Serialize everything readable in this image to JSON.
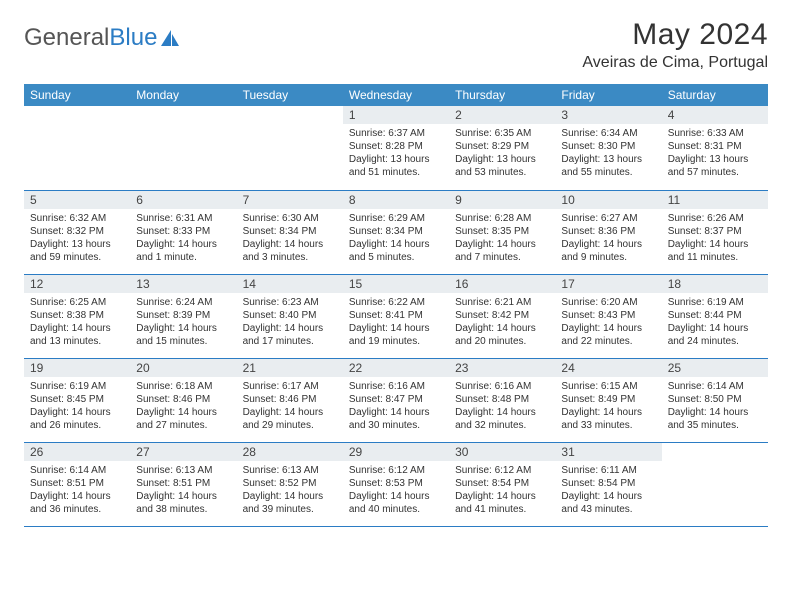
{
  "brand": {
    "part1": "General",
    "part2": "Blue"
  },
  "title": "May 2024",
  "location": "Aveiras de Cima, Portugal",
  "colors": {
    "header_bg": "#3b8ac4",
    "daynum_bg": "#e9edf0",
    "border": "#2b7cc4",
    "text": "#333333"
  },
  "dayNames": [
    "Sunday",
    "Monday",
    "Tuesday",
    "Wednesday",
    "Thursday",
    "Friday",
    "Saturday"
  ],
  "weeks": [
    [
      null,
      null,
      null,
      {
        "d": "1",
        "sr": "6:37 AM",
        "ss": "8:28 PM",
        "dl": "13 hours and 51 minutes."
      },
      {
        "d": "2",
        "sr": "6:35 AM",
        "ss": "8:29 PM",
        "dl": "13 hours and 53 minutes."
      },
      {
        "d": "3",
        "sr": "6:34 AM",
        "ss": "8:30 PM",
        "dl": "13 hours and 55 minutes."
      },
      {
        "d": "4",
        "sr": "6:33 AM",
        "ss": "8:31 PM",
        "dl": "13 hours and 57 minutes."
      }
    ],
    [
      {
        "d": "5",
        "sr": "6:32 AM",
        "ss": "8:32 PM",
        "dl": "13 hours and 59 minutes."
      },
      {
        "d": "6",
        "sr": "6:31 AM",
        "ss": "8:33 PM",
        "dl": "14 hours and 1 minute."
      },
      {
        "d": "7",
        "sr": "6:30 AM",
        "ss": "8:34 PM",
        "dl": "14 hours and 3 minutes."
      },
      {
        "d": "8",
        "sr": "6:29 AM",
        "ss": "8:34 PM",
        "dl": "14 hours and 5 minutes."
      },
      {
        "d": "9",
        "sr": "6:28 AM",
        "ss": "8:35 PM",
        "dl": "14 hours and 7 minutes."
      },
      {
        "d": "10",
        "sr": "6:27 AM",
        "ss": "8:36 PM",
        "dl": "14 hours and 9 minutes."
      },
      {
        "d": "11",
        "sr": "6:26 AM",
        "ss": "8:37 PM",
        "dl": "14 hours and 11 minutes."
      }
    ],
    [
      {
        "d": "12",
        "sr": "6:25 AM",
        "ss": "8:38 PM",
        "dl": "14 hours and 13 minutes."
      },
      {
        "d": "13",
        "sr": "6:24 AM",
        "ss": "8:39 PM",
        "dl": "14 hours and 15 minutes."
      },
      {
        "d": "14",
        "sr": "6:23 AM",
        "ss": "8:40 PM",
        "dl": "14 hours and 17 minutes."
      },
      {
        "d": "15",
        "sr": "6:22 AM",
        "ss": "8:41 PM",
        "dl": "14 hours and 19 minutes."
      },
      {
        "d": "16",
        "sr": "6:21 AM",
        "ss": "8:42 PM",
        "dl": "14 hours and 20 minutes."
      },
      {
        "d": "17",
        "sr": "6:20 AM",
        "ss": "8:43 PM",
        "dl": "14 hours and 22 minutes."
      },
      {
        "d": "18",
        "sr": "6:19 AM",
        "ss": "8:44 PM",
        "dl": "14 hours and 24 minutes."
      }
    ],
    [
      {
        "d": "19",
        "sr": "6:19 AM",
        "ss": "8:45 PM",
        "dl": "14 hours and 26 minutes."
      },
      {
        "d": "20",
        "sr": "6:18 AM",
        "ss": "8:46 PM",
        "dl": "14 hours and 27 minutes."
      },
      {
        "d": "21",
        "sr": "6:17 AM",
        "ss": "8:46 PM",
        "dl": "14 hours and 29 minutes."
      },
      {
        "d": "22",
        "sr": "6:16 AM",
        "ss": "8:47 PM",
        "dl": "14 hours and 30 minutes."
      },
      {
        "d": "23",
        "sr": "6:16 AM",
        "ss": "8:48 PM",
        "dl": "14 hours and 32 minutes."
      },
      {
        "d": "24",
        "sr": "6:15 AM",
        "ss": "8:49 PM",
        "dl": "14 hours and 33 minutes."
      },
      {
        "d": "25",
        "sr": "6:14 AM",
        "ss": "8:50 PM",
        "dl": "14 hours and 35 minutes."
      }
    ],
    [
      {
        "d": "26",
        "sr": "6:14 AM",
        "ss": "8:51 PM",
        "dl": "14 hours and 36 minutes."
      },
      {
        "d": "27",
        "sr": "6:13 AM",
        "ss": "8:51 PM",
        "dl": "14 hours and 38 minutes."
      },
      {
        "d": "28",
        "sr": "6:13 AM",
        "ss": "8:52 PM",
        "dl": "14 hours and 39 minutes."
      },
      {
        "d": "29",
        "sr": "6:12 AM",
        "ss": "8:53 PM",
        "dl": "14 hours and 40 minutes."
      },
      {
        "d": "30",
        "sr": "6:12 AM",
        "ss": "8:54 PM",
        "dl": "14 hours and 41 minutes."
      },
      {
        "d": "31",
        "sr": "6:11 AM",
        "ss": "8:54 PM",
        "dl": "14 hours and 43 minutes."
      },
      null
    ]
  ],
  "labels": {
    "sunrise": "Sunrise:",
    "sunset": "Sunset:",
    "daylight": "Daylight:"
  }
}
